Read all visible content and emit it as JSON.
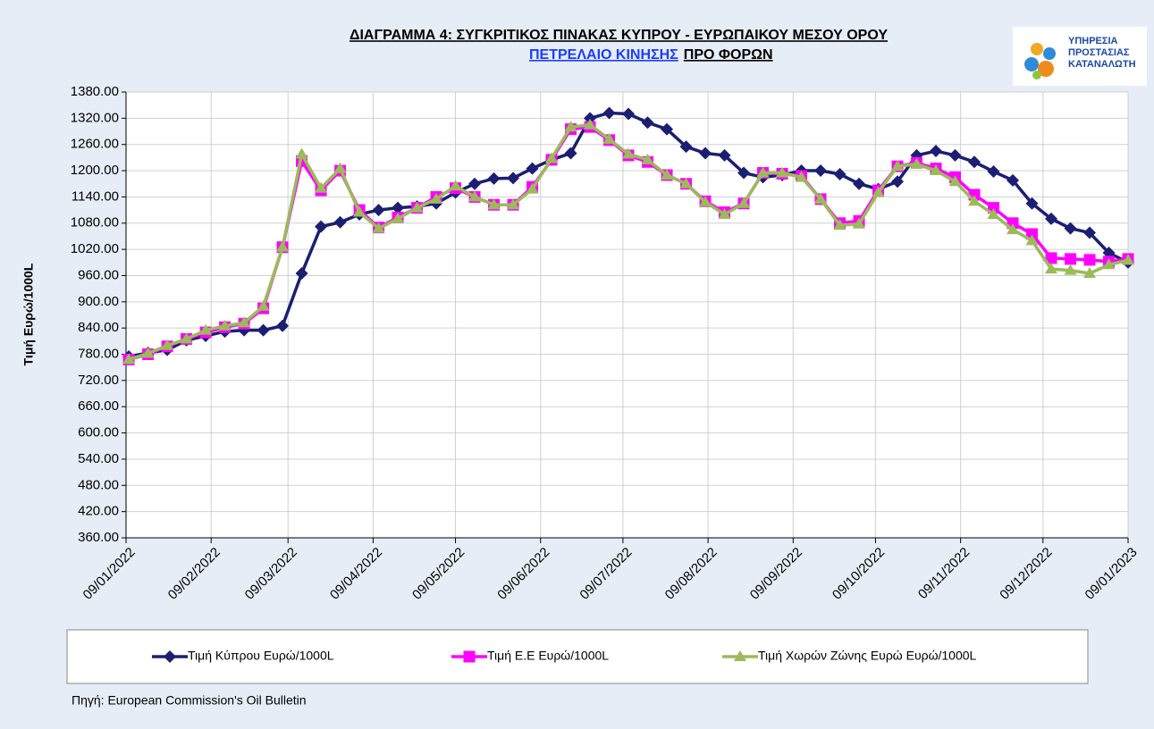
{
  "chart_data": {
    "type": "line",
    "title": "ΔΙΑΓΡΑΜΜΑ 4: ΣΥΓΚΡΙΤΙΚΟΣ ΠΙΝΑΚΑΣ ΚΥΠΡΟΥ - ΕΥΡΩΠΑΙΚΟΥ ΜΕΣΟΥ ΟΡΟΥ",
    "subtitle_link": "ΠΕΤΡΕΛΑΙΟ ΚΙΝΗΣΗΣ",
    "subtitle": "ΠΡΟ  ΦΟΡΩΝ",
    "logo": [
      "ΥΠΗΡΕΣΙΑ",
      "ΠΡΟΣΤΑΣΙΑΣ",
      "ΚΑΤΑΝΑΛΩΤΗ"
    ],
    "ylabel": "Τιμή Ευρώ/1000L",
    "source": "Πηγή: European Commission's Oil Bulletin",
    "x": [
      "10/01/2022",
      "17/01/2022",
      "24/01/2022",
      "31/01/2022",
      "07/02/2022",
      "14/02/2022",
      "21/02/2022",
      "28/02/2022",
      "07/03/2022",
      "14/03/2022",
      "21/03/2022",
      "28/03/2022",
      "04/04/2022",
      "11/04/2022",
      "18/04/2022",
      "25/04/2022",
      "02/05/2022",
      "09/05/2022",
      "16/05/2022",
      "23/05/2022",
      "30/05/2022",
      "06/06/2022",
      "13/06/2022",
      "20/06/2022",
      "27/06/2022",
      "04/07/2022",
      "11/07/2022",
      "18/07/2022",
      "25/07/2022",
      "01/08/2022",
      "08/08/2022",
      "15/08/2022",
      "22/08/2022",
      "29/08/2022",
      "05/09/2022",
      "12/09/2022",
      "19/09/2022",
      "26/09/2022",
      "03/10/2022",
      "10/10/2022",
      "17/10/2022",
      "24/10/2022",
      "31/10/2022",
      "07/11/2022",
      "14/11/2022",
      "21/11/2022",
      "28/11/2022",
      "05/12/2022",
      "12/12/2022",
      "19/12/2022",
      "26/12/2022",
      "02/01/2023",
      "09/01/2023"
    ],
    "xlim": [
      "09/01/2022",
      "09/01/2023"
    ],
    "xticks": [
      "09/01/2022",
      "09/02/2022",
      "09/03/2022",
      "09/04/2022",
      "09/05/2022",
      "09/06/2022",
      "09/07/2022",
      "09/08/2022",
      "09/09/2022",
      "09/10/2022",
      "09/11/2022",
      "09/12/2022",
      "09/01/2023"
    ],
    "ylim": [
      360,
      1380
    ],
    "yticks": [
      {
        "value": 360,
        "label": "360.00"
      },
      {
        "value": 420,
        "label": "420.00"
      },
      {
        "value": 480,
        "label": "480.00"
      },
      {
        "value": 540,
        "label": "540.00"
      },
      {
        "value": 600,
        "label": "600.00"
      },
      {
        "value": 660,
        "label": "660.00"
      },
      {
        "value": 720,
        "label": "720.00"
      },
      {
        "value": 780,
        "label": "780.00"
      },
      {
        "value": 840,
        "label": "840.00"
      },
      {
        "value": 900,
        "label": "900.00"
      },
      {
        "value": 960,
        "label": "960.00"
      },
      {
        "value": 1020,
        "label": "1020.00"
      },
      {
        "value": 1080,
        "label": "1080.00"
      },
      {
        "value": 1140,
        "label": "1140.00"
      },
      {
        "value": 1200,
        "label": "1200.00"
      },
      {
        "value": 1260,
        "label": "1260.00"
      },
      {
        "value": 1320,
        "label": "1320.00"
      },
      {
        "value": 1380,
        "label": "1380.00"
      }
    ],
    "grid": true,
    "legend": "bottom",
    "series": [
      {
        "name": "Τιμή Κύπρου Ευρώ/1000L",
        "color": "#1a1f71",
        "marker": "diamond",
        "values": [
          775,
          783,
          790,
          812,
          822,
          832,
          835,
          835,
          845,
          965,
          1072,
          1082,
          1100,
          1110,
          1115,
          1118,
          1125,
          1150,
          1170,
          1182,
          1183,
          1205,
          1225,
          1240,
          1320,
          1332,
          1330,
          1310,
          1295,
          1255,
          1240,
          1235,
          1195,
          1185,
          1190,
          1200,
          1200,
          1192,
          1170,
          1158,
          1175,
          1235,
          1245,
          1235,
          1220,
          1198,
          1178,
          1125,
          1090,
          1068,
          1058,
          1012,
          990
        ]
      },
      {
        "name": "Τιμή Ε.Ε Ευρώ/1000L",
        "color": "#ff00ff",
        "marker": "square",
        "values": [
          768,
          780,
          798,
          815,
          830,
          842,
          850,
          885,
          1025,
          1222,
          1155,
          1200,
          1110,
          1070,
          1093,
          1115,
          1140,
          1160,
          1140,
          1122,
          1122,
          1163,
          1225,
          1295,
          1300,
          1270,
          1235,
          1220,
          1190,
          1170,
          1130,
          1105,
          1125,
          1195,
          1193,
          1188,
          1135,
          1080,
          1085,
          1155,
          1210,
          1218,
          1205,
          1185,
          1145,
          1115,
          1080,
          1055,
          1000,
          998,
          996,
          992,
          998
        ]
      },
      {
        "name": "Τιμή Χωρών Ζώνης Ευρώ Ευρώ/1000L",
        "color": "#9bbb59",
        "marker": "triangle",
        "values": [
          768,
          782,
          800,
          815,
          835,
          845,
          852,
          890,
          1025,
          1238,
          1160,
          1205,
          1105,
          1068,
          1090,
          1115,
          1135,
          1165,
          1140,
          1122,
          1122,
          1158,
          1228,
          1300,
          1305,
          1272,
          1238,
          1225,
          1190,
          1170,
          1128,
          1100,
          1125,
          1195,
          1195,
          1185,
          1135,
          1075,
          1078,
          1150,
          1210,
          1215,
          1200,
          1175,
          1130,
          1100,
          1065,
          1040,
          975,
          972,
          965,
          985,
          995
        ]
      }
    ]
  }
}
